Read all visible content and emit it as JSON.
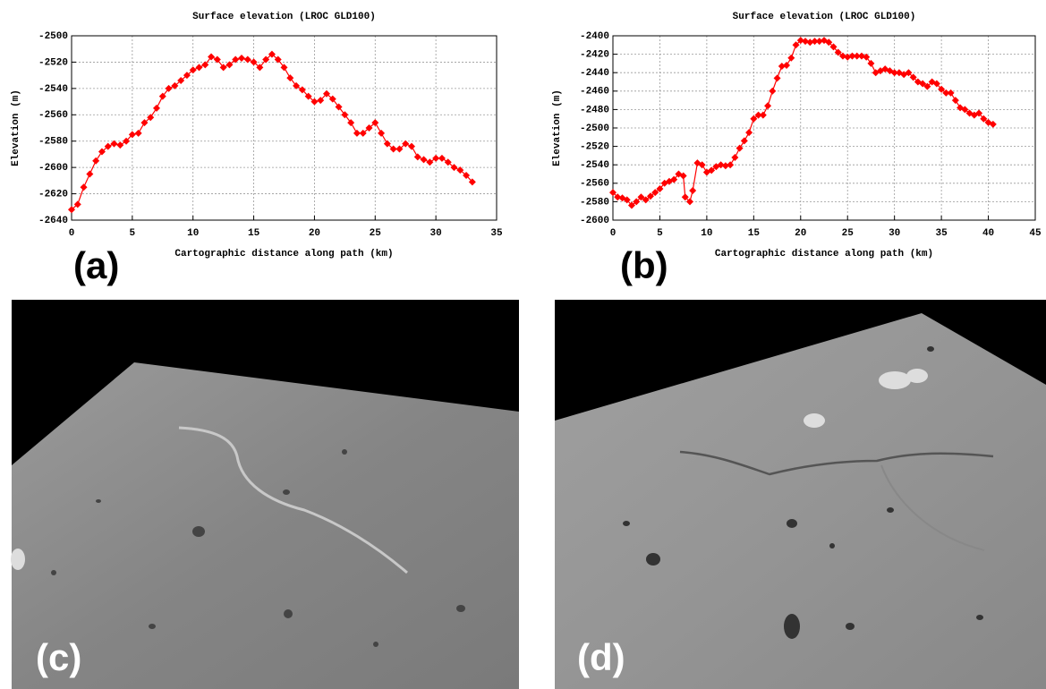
{
  "panel_labels": [
    "(a)",
    "(b)",
    "(c)",
    "(d)"
  ],
  "chart_data": [
    {
      "type": "line",
      "title": "Surface elevation (LROC GLD100)",
      "x_label": "Cartographic distance along path (km)",
      "y_label": "Elevation (m)",
      "color": "#ff0000",
      "grid": true,
      "xlim": [
        0,
        35
      ],
      "xticks": [
        0,
        5,
        10,
        15,
        20,
        25,
        30,
        35
      ],
      "ylim": [
        -2640,
        -2500
      ],
      "yticks": [
        -2640,
        -2620,
        -2600,
        -2580,
        -2560,
        -2540,
        -2520,
        -2500
      ],
      "x": [
        0,
        0.5,
        1,
        1.5,
        2,
        2.5,
        3,
        3.5,
        4,
        4.5,
        5,
        5.5,
        6,
        6.5,
        7,
        7.5,
        8,
        8.5,
        9,
        9.5,
        10,
        10.5,
        11,
        11.5,
        12,
        12.5,
        13,
        13.5,
        14,
        14.5,
        15,
        15.5,
        16,
        16.5,
        17,
        17.5,
        18,
        18.5,
        19,
        19.5,
        20,
        20.5,
        21,
        21.5,
        22,
        22.5,
        23,
        23.5,
        24,
        24.5,
        25,
        25.5,
        26,
        26.5,
        27,
        27.5,
        28,
        28.5,
        29,
        29.5,
        30,
        30.5,
        31,
        31.5,
        32,
        32.5,
        33
      ],
      "values": [
        -2632,
        -2628,
        -2615,
        -2605,
        -2595,
        -2588,
        -2584,
        -2582,
        -2583,
        -2580,
        -2575,
        -2574,
        -2566,
        -2562,
        -2555,
        -2546,
        -2540,
        -2538,
        -2534,
        -2530,
        -2526,
        -2524,
        -2522,
        -2516,
        -2518,
        -2524,
        -2522,
        -2518,
        -2517,
        -2518,
        -2520,
        -2524,
        -2518,
        -2514,
        -2518,
        -2524,
        -2532,
        -2538,
        -2541,
        -2546,
        -2550,
        -2549,
        -2544,
        -2548,
        -2554,
        -2560,
        -2566,
        -2574,
        -2574,
        -2570,
        -2566,
        -2574,
        -2582,
        -2586,
        -2586,
        -2582,
        -2584,
        -2592,
        -2594,
        -2596,
        -2593,
        -2593,
        -2596,
        -2600,
        -2602,
        -2606,
        -2611
      ]
    },
    {
      "type": "line",
      "title": "Surface elevation (LROC GLD100)",
      "x_label": "Cartographic distance along path (km)",
      "y_label": "Elevation (m)",
      "color": "#ff0000",
      "grid": true,
      "xlim": [
        0,
        45
      ],
      "xticks": [
        0,
        5,
        10,
        15,
        20,
        25,
        30,
        35,
        40,
        45
      ],
      "ylim": [
        -2600,
        -2400
      ],
      "yticks": [
        -2600,
        -2580,
        -2560,
        -2540,
        -2520,
        -2500,
        -2480,
        -2460,
        -2440,
        -2420,
        -2400
      ],
      "x": [
        0,
        0.5,
        1,
        1.5,
        2,
        2.5,
        3,
        3.5,
        4,
        4.5,
        5,
        5.5,
        6,
        6.5,
        7,
        7.5,
        7.7,
        8.2,
        8.5,
        9,
        9.5,
        10,
        10.5,
        11,
        11.5,
        12,
        12.5,
        13,
        13.5,
        14,
        14.5,
        15,
        15.5,
        16,
        16.5,
        17,
        17.5,
        18,
        18.5,
        19,
        19.5,
        20,
        20.5,
        21,
        21.5,
        22,
        22.5,
        23,
        23.5,
        24,
        24.5,
        25,
        25.5,
        26,
        26.5,
        27,
        27.5,
        28,
        28.5,
        29,
        29.5,
        30,
        30.5,
        31,
        31.5,
        32,
        32.5,
        33,
        33.5,
        34,
        34.5,
        35,
        35.5,
        36,
        36.5,
        37,
        37.5,
        38,
        38.5,
        39,
        39.5,
        40,
        40.5
      ],
      "values": [
        -2570,
        -2575,
        -2576,
        -2578,
        -2584,
        -2580,
        -2575,
        -2578,
        -2574,
        -2570,
        -2566,
        -2560,
        -2558,
        -2556,
        -2550,
        -2552,
        -2575,
        -2580,
        -2568,
        -2538,
        -2540,
        -2548,
        -2546,
        -2542,
        -2540,
        -2541,
        -2540,
        -2532,
        -2522,
        -2514,
        -2505,
        -2490,
        -2486,
        -2486,
        -2476,
        -2460,
        -2446,
        -2433,
        -2432,
        -2424,
        -2410,
        -2405,
        -2406,
        -2407,
        -2406,
        -2406,
        -2405,
        -2407,
        -2412,
        -2418,
        -2422,
        -2423,
        -2422,
        -2422,
        -2422,
        -2423,
        -2430,
        -2440,
        -2438,
        -2436,
        -2438,
        -2440,
        -2440,
        -2442,
        -2440,
        -2445,
        -2450,
        -2452,
        -2455,
        -2450,
        -2452,
        -2458,
        -2462,
        -2462,
        -2470,
        -2478,
        -2480,
        -2484,
        -2486,
        -2484,
        -2490,
        -2494,
        -2496
      ]
    }
  ]
}
